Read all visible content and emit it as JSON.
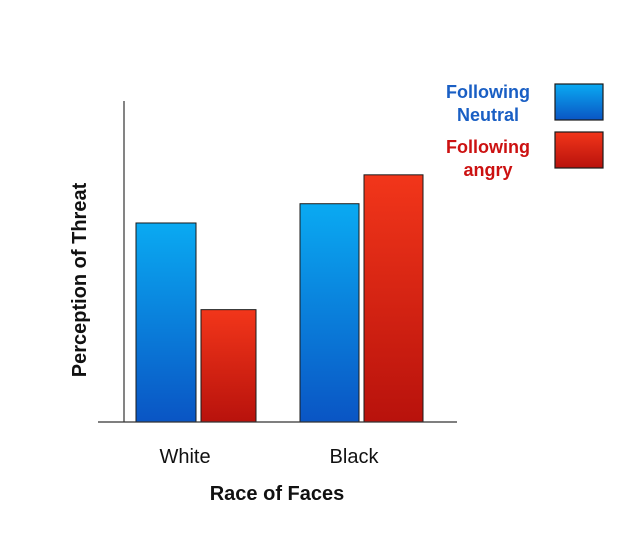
{
  "chart_data": {
    "type": "bar",
    "title": "",
    "xlabel": "Race of Faces",
    "ylabel": "Perception of Threat",
    "categories": [
      "White",
      "Black"
    ],
    "series": [
      {
        "name": "Following Neutral",
        "name_lines": [
          "Following",
          "Neutral"
        ],
        "values": [
          62,
          68
        ],
        "color_top": "#0aaaf2",
        "color_bottom": "#0a55c4",
        "text_color": "#1a5fc4"
      },
      {
        "name": "Following angry",
        "name_lines": [
          "Following",
          "angry"
        ],
        "values": [
          35,
          77
        ],
        "color_top": "#f2361a",
        "color_bottom": "#b8120c",
        "text_color": "#cc1111"
      }
    ],
    "ylim": [
      0,
      100
    ],
    "grid": false,
    "legend": "top-right",
    "y_ticks_shown": false
  }
}
